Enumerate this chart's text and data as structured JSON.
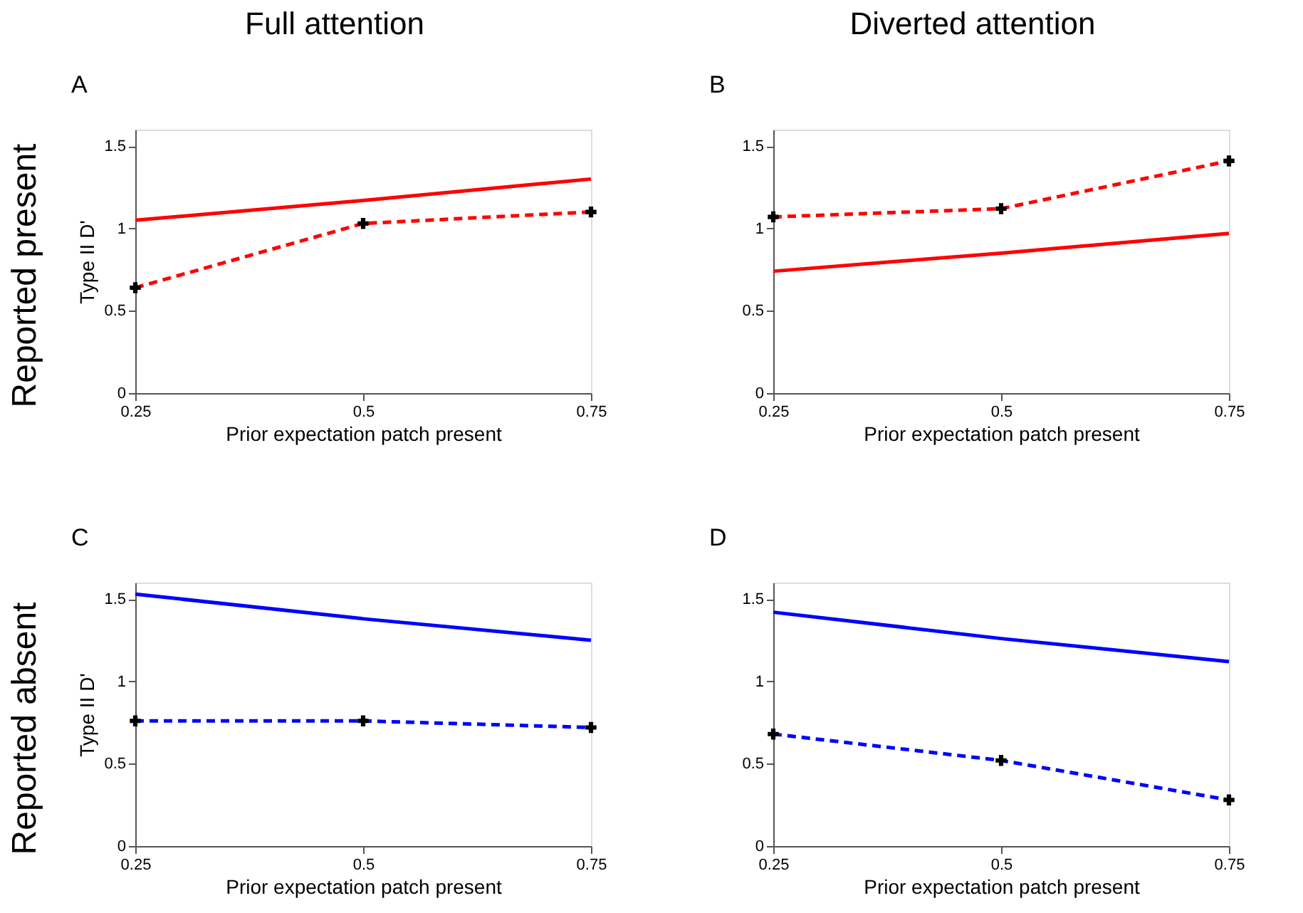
{
  "chart_data": [
    {
      "type": "line",
      "title": "A",
      "annotations": [
        "Full attention",
        "Reported present"
      ],
      "xlabel": "Prior expectation patch present",
      "ylabel": "Type II D'",
      "x": [
        0.25,
        0.5,
        0.75
      ],
      "xlim": [
        0.25,
        0.75
      ],
      "xticks": [
        0.25,
        0.5,
        0.75
      ],
      "ylim": [
        0,
        1.6
      ],
      "yticks": [
        0,
        0.5,
        1,
        1.5
      ],
      "series": [
        {
          "color": "#ff0000",
          "line_style": "solid",
          "marker": "none",
          "values": [
            1.05,
            1.17,
            1.3
          ]
        },
        {
          "color": "#ff0000",
          "line_style": "dashed",
          "marker": "cross",
          "values": [
            0.64,
            1.03,
            1.1
          ]
        }
      ]
    },
    {
      "type": "line",
      "title": "B",
      "annotations": [
        "Diverted attention"
      ],
      "xlabel": "Prior expectation patch present",
      "x": [
        0.25,
        0.5,
        0.75
      ],
      "xlim": [
        0.25,
        0.75
      ],
      "xticks": [
        0.25,
        0.5,
        0.75
      ],
      "ylim": [
        0,
        1.6
      ],
      "yticks": [
        0,
        0.5,
        1,
        1.5
      ],
      "series": [
        {
          "color": "#ff0000",
          "line_style": "solid",
          "marker": "none",
          "values": [
            0.74,
            0.85,
            0.97
          ]
        },
        {
          "color": "#ff0000",
          "line_style": "dashed",
          "marker": "cross",
          "values": [
            1.07,
            1.12,
            1.41
          ]
        }
      ]
    },
    {
      "type": "line",
      "title": "C",
      "annotations": [
        "Reported absent"
      ],
      "xlabel": "Prior expectation patch present",
      "ylabel": "Type II D'",
      "x": [
        0.25,
        0.5,
        0.75
      ],
      "xlim": [
        0.25,
        0.75
      ],
      "xticks": [
        0.25,
        0.5,
        0.75
      ],
      "ylim": [
        0,
        1.6
      ],
      "yticks": [
        0,
        0.5,
        1,
        1.5
      ],
      "series": [
        {
          "color": "#0000ff",
          "line_style": "solid",
          "marker": "none",
          "values": [
            1.53,
            1.38,
            1.25
          ]
        },
        {
          "color": "#0000ff",
          "line_style": "dashed",
          "marker": "cross",
          "values": [
            0.76,
            0.76,
            0.72
          ]
        }
      ]
    },
    {
      "type": "line",
      "title": "D",
      "xlabel": "Prior expectation patch present",
      "x": [
        0.25,
        0.5,
        0.75
      ],
      "xlim": [
        0.25,
        0.75
      ],
      "xticks": [
        0.25,
        0.5,
        0.75
      ],
      "ylim": [
        0,
        1.6
      ],
      "yticks": [
        0,
        0.5,
        1,
        1.5
      ],
      "series": [
        {
          "color": "#0000ff",
          "line_style": "solid",
          "marker": "none",
          "values": [
            1.42,
            1.26,
            1.12
          ]
        },
        {
          "color": "#0000ff",
          "line_style": "dashed",
          "marker": "cross",
          "values": [
            0.68,
            0.52,
            0.28
          ]
        }
      ]
    }
  ]
}
